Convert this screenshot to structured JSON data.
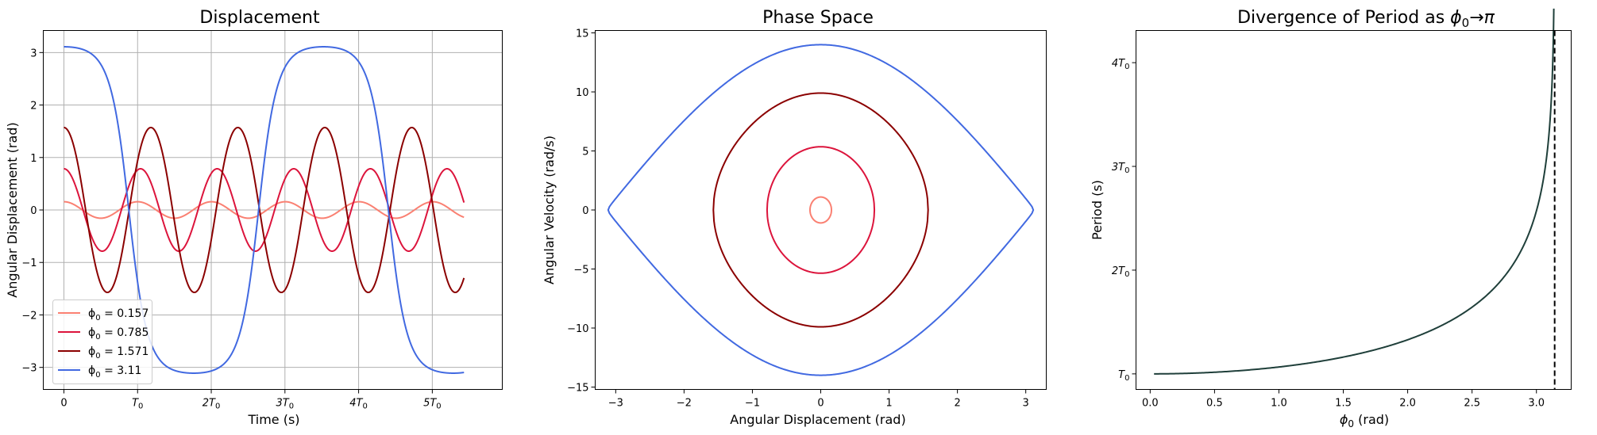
{
  "chart_data": [
    {
      "type": "line",
      "title": "Displacement",
      "xlabel": "Time (s)",
      "ylabel": "Angular Displacement (rad)",
      "xlim": [
        -0.28,
        5.95
      ],
      "ylim": [
        -3.42,
        3.42
      ],
      "grid": true,
      "legend_position": "lower-left",
      "xticks": [
        {
          "value": 0,
          "label": "0"
        },
        {
          "value": 1,
          "label": "T",
          "sub": "0"
        },
        {
          "value": 2,
          "label": "2T",
          "sub": "0"
        },
        {
          "value": 3,
          "label": "3T",
          "sub": "0"
        },
        {
          "value": 4,
          "label": "4T",
          "sub": "0"
        },
        {
          "value": 5,
          "label": "5T",
          "sub": "0"
        }
      ],
      "yticks": [
        {
          "value": 3,
          "label": "3"
        },
        {
          "value": 2,
          "label": "2"
        },
        {
          "value": 1,
          "label": "1"
        },
        {
          "value": 0,
          "label": "0"
        },
        {
          "value": -1,
          "label": "−1"
        },
        {
          "value": -2,
          "label": "−2"
        },
        {
          "value": -3,
          "label": "−3"
        }
      ],
      "series": [
        {
          "name": "ϕ₀ = 0.157",
          "label_value": "0.157",
          "phi0": 0.157,
          "period_ratio": 1.0015,
          "t_end": 5.43,
          "color": "#fa8072"
        },
        {
          "name": "ϕ₀ = 0.785",
          "label_value": "0.785",
          "phi0": 0.785,
          "period_ratio": 1.04,
          "t_end": 5.43,
          "color": "#dc143c"
        },
        {
          "name": "ϕ₀ = 1.571",
          "label_value": "1.571",
          "phi0": 1.571,
          "period_ratio": 1.18,
          "t_end": 5.43,
          "color": "#8b0000"
        },
        {
          "name": "ϕ₀ = 3.11",
          "label_value": "3.11",
          "phi0": 3.11,
          "period_ratio": 4.1,
          "t_end": 5.43,
          "color": "#4169e1"
        }
      ]
    },
    {
      "type": "line",
      "title": "Phase Space",
      "xlabel": "Angular Displacement (rad)",
      "ylabel": "Angular Velocity (rad/s)",
      "xlim": [
        -3.3,
        3.3
      ],
      "ylim": [
        -15.2,
        15.2
      ],
      "grid": false,
      "omega0": 7.0,
      "xticks": [
        {
          "value": -3,
          "label": "−3"
        },
        {
          "value": -2,
          "label": "−2"
        },
        {
          "value": -1,
          "label": "−1"
        },
        {
          "value": 0,
          "label": "0"
        },
        {
          "value": 1,
          "label": "1"
        },
        {
          "value": 2,
          "label": "2"
        },
        {
          "value": 3,
          "label": "3"
        }
      ],
      "yticks": [
        {
          "value": 15,
          "label": "15"
        },
        {
          "value": 10,
          "label": "10"
        },
        {
          "value": 5,
          "label": "5"
        },
        {
          "value": 0,
          "label": "0"
        },
        {
          "value": -5,
          "label": "−5"
        },
        {
          "value": -10,
          "label": "−10"
        },
        {
          "value": -15,
          "label": "−15"
        }
      ],
      "series": [
        {
          "phi0": 0.157,
          "color": "#fa8072"
        },
        {
          "phi0": 0.785,
          "color": "#dc143c"
        },
        {
          "phi0": 1.571,
          "color": "#8b0000"
        },
        {
          "phi0": 3.11,
          "color": "#4169e1"
        }
      ]
    },
    {
      "type": "line",
      "title": "Divergence of Period as ϕ₀→π",
      "title_parts": [
        "Divergence of Period as ",
        "ϕ",
        "0",
        "→",
        "π"
      ],
      "xlabel": "ϕ₀ (rad)",
      "xlabel_parts": [
        "ϕ",
        "0",
        " (rad)"
      ],
      "ylabel": "Period (s)",
      "xlim": [
        -0.11,
        3.27
      ],
      "ylim": [
        0.85,
        4.31
      ],
      "grid": false,
      "x_range": [
        0.03,
        3.135
      ],
      "asymptote_x": 3.14159,
      "line_color": "#1f3f3a",
      "asymptote_color": "#000000",
      "xticks": [
        {
          "value": 0.0,
          "label": "0.0"
        },
        {
          "value": 0.5,
          "label": "0.5"
        },
        {
          "value": 1.0,
          "label": "1.0"
        },
        {
          "value": 1.5,
          "label": "1.5"
        },
        {
          "value": 2.0,
          "label": "2.0"
        },
        {
          "value": 2.5,
          "label": "2.5"
        },
        {
          "value": 3.0,
          "label": "3.0"
        }
      ],
      "yticks": [
        {
          "value": 4,
          "label": "4T",
          "sub": "0"
        },
        {
          "value": 3,
          "label": "3T",
          "sub": "0"
        },
        {
          "value": 2,
          "label": "2T",
          "sub": "0"
        },
        {
          "value": 1,
          "label": "T",
          "sub": "0"
        }
      ]
    }
  ]
}
